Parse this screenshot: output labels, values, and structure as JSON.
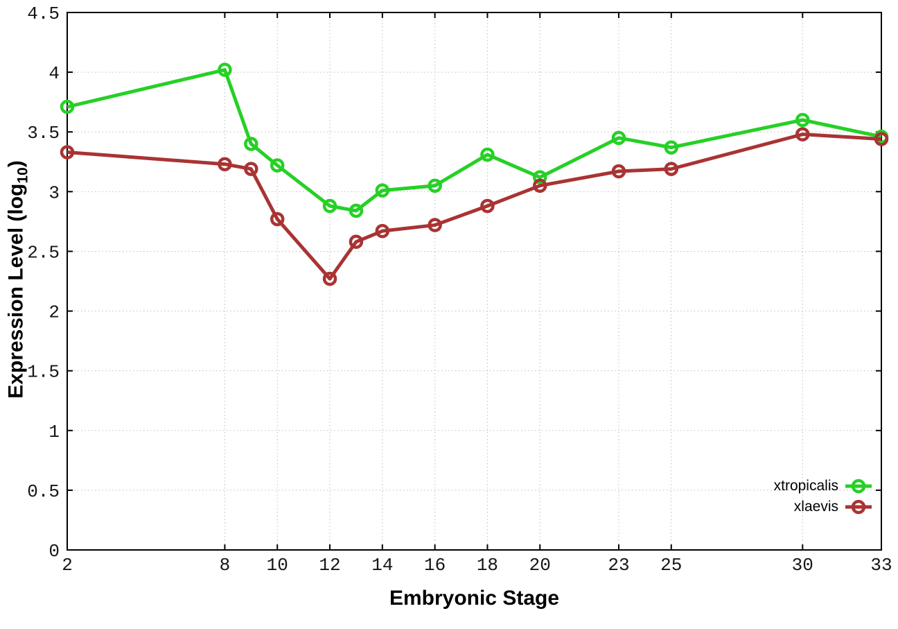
{
  "chart_data": {
    "type": "line",
    "title": "",
    "xlabel": "Embryonic Stage",
    "ylabel_main": "Expression Level (log",
    "ylabel_sub": "10",
    "ylabel_close": ")",
    "x": [
      2,
      8,
      9,
      10,
      12,
      13,
      14,
      16,
      18,
      20,
      23,
      25,
      30,
      33
    ],
    "series": [
      {
        "name": "xtropicalis",
        "color": "#26d026",
        "values": [
          3.71,
          4.02,
          3.4,
          3.22,
          2.88,
          2.84,
          3.01,
          3.05,
          3.31,
          3.12,
          3.45,
          3.37,
          3.6,
          3.46
        ]
      },
      {
        "name": "xlaevis",
        "color": "#a93333",
        "values": [
          3.33,
          3.23,
          3.19,
          2.77,
          2.27,
          2.58,
          2.67,
          2.72,
          2.88,
          3.05,
          3.17,
          3.19,
          3.48,
          3.44
        ]
      }
    ],
    "xlim": [
      2,
      33
    ],
    "ylim": [
      0,
      4.5
    ],
    "xticks": [
      2,
      8,
      10,
      12,
      14,
      16,
      18,
      20,
      23,
      25,
      30,
      33
    ],
    "xtick_labels": [
      "2",
      "8",
      "10",
      "12",
      "14",
      "16",
      "18",
      "20",
      "23",
      "25",
      "30",
      "33"
    ],
    "yticks": [
      0,
      0.5,
      1,
      1.5,
      2,
      2.5,
      3,
      3.5,
      4,
      4.5
    ],
    "ytick_labels": [
      "0",
      "0.5",
      "1",
      "1.5",
      "2",
      "2.5",
      "3",
      "3.5",
      "4",
      "4.5"
    ],
    "grid": true,
    "grid_color": "#bdbdbd",
    "axis_color": "#000000",
    "marker": "open-circle",
    "legend_position": "bottom-right"
  }
}
